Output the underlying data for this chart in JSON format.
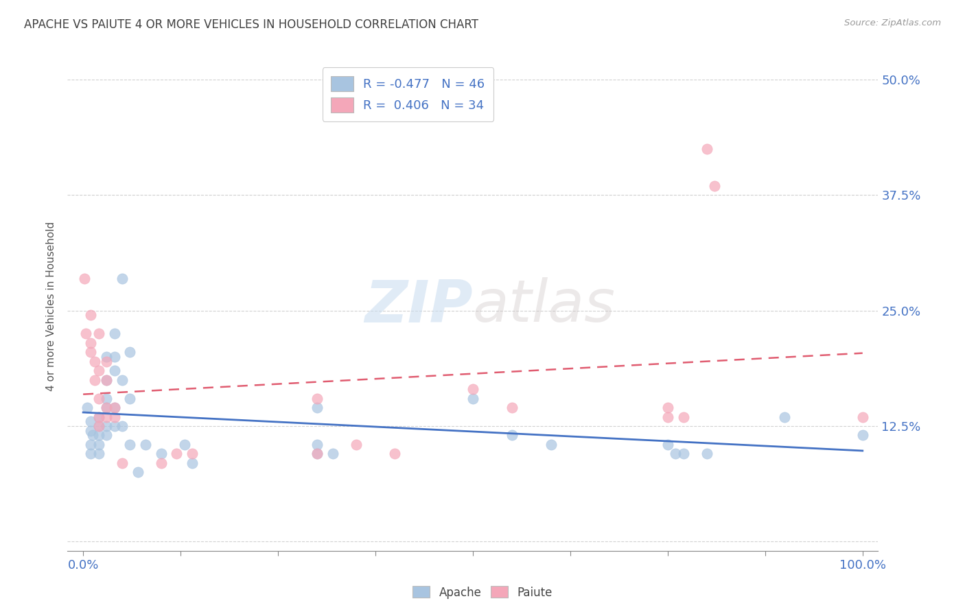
{
  "title": "APACHE VS PAIUTE 4 OR MORE VEHICLES IN HOUSEHOLD CORRELATION CHART",
  "source": "Source: ZipAtlas.com",
  "ylabel": "4 or more Vehicles in Household",
  "xlim": [
    -0.02,
    1.02
  ],
  "ylim": [
    -0.01,
    0.52
  ],
  "xticks": [
    0.0,
    0.125,
    0.25,
    0.375,
    0.5,
    0.625,
    0.75,
    0.875,
    1.0
  ],
  "xticklabels_shown": [
    "0.0%",
    "",
    "",
    "",
    "",
    "",
    "",
    "",
    "100.0%"
  ],
  "yticks": [
    0.0,
    0.125,
    0.25,
    0.375,
    0.5
  ],
  "yticklabels_right": [
    "",
    "12.5%",
    "25.0%",
    "37.5%",
    "50.0%"
  ],
  "legend_R_apache": "-0.477",
  "legend_N_apache": "46",
  "legend_R_paiute": "0.406",
  "legend_N_paiute": "34",
  "apache_color": "#a8c4e0",
  "paiute_color": "#f4a7b9",
  "apache_line_color": "#4472c4",
  "paiute_line_color": "#e05c70",
  "title_color": "#404040",
  "axis_label_color": "#4472c4",
  "watermark_color": "#dce8f5",
  "grid_color": "#cccccc",
  "apache_points": [
    [
      0.005,
      0.145
    ],
    [
      0.01,
      0.13
    ],
    [
      0.01,
      0.12
    ],
    [
      0.012,
      0.115
    ],
    [
      0.01,
      0.105
    ],
    [
      0.01,
      0.095
    ],
    [
      0.02,
      0.135
    ],
    [
      0.02,
      0.125
    ],
    [
      0.02,
      0.115
    ],
    [
      0.02,
      0.105
    ],
    [
      0.02,
      0.095
    ],
    [
      0.03,
      0.2
    ],
    [
      0.03,
      0.175
    ],
    [
      0.03,
      0.155
    ],
    [
      0.03,
      0.145
    ],
    [
      0.03,
      0.125
    ],
    [
      0.03,
      0.115
    ],
    [
      0.04,
      0.225
    ],
    [
      0.04,
      0.2
    ],
    [
      0.04,
      0.185
    ],
    [
      0.04,
      0.145
    ],
    [
      0.04,
      0.125
    ],
    [
      0.05,
      0.285
    ],
    [
      0.05,
      0.175
    ],
    [
      0.05,
      0.125
    ],
    [
      0.06,
      0.205
    ],
    [
      0.06,
      0.155
    ],
    [
      0.06,
      0.105
    ],
    [
      0.07,
      0.075
    ],
    [
      0.08,
      0.105
    ],
    [
      0.1,
      0.095
    ],
    [
      0.13,
      0.105
    ],
    [
      0.14,
      0.085
    ],
    [
      0.3,
      0.145
    ],
    [
      0.3,
      0.105
    ],
    [
      0.3,
      0.095
    ],
    [
      0.32,
      0.095
    ],
    [
      0.5,
      0.155
    ],
    [
      0.55,
      0.115
    ],
    [
      0.6,
      0.105
    ],
    [
      0.75,
      0.105
    ],
    [
      0.76,
      0.095
    ],
    [
      0.77,
      0.095
    ],
    [
      0.8,
      0.095
    ],
    [
      0.9,
      0.135
    ],
    [
      1.0,
      0.115
    ]
  ],
  "paiute_points": [
    [
      0.002,
      0.285
    ],
    [
      0.003,
      0.225
    ],
    [
      0.01,
      0.245
    ],
    [
      0.01,
      0.215
    ],
    [
      0.01,
      0.205
    ],
    [
      0.015,
      0.195
    ],
    [
      0.015,
      0.175
    ],
    [
      0.02,
      0.225
    ],
    [
      0.02,
      0.185
    ],
    [
      0.02,
      0.155
    ],
    [
      0.02,
      0.135
    ],
    [
      0.02,
      0.125
    ],
    [
      0.03,
      0.195
    ],
    [
      0.03,
      0.175
    ],
    [
      0.03,
      0.145
    ],
    [
      0.03,
      0.135
    ],
    [
      0.04,
      0.145
    ],
    [
      0.04,
      0.135
    ],
    [
      0.05,
      0.085
    ],
    [
      0.1,
      0.085
    ],
    [
      0.12,
      0.095
    ],
    [
      0.14,
      0.095
    ],
    [
      0.3,
      0.155
    ],
    [
      0.3,
      0.095
    ],
    [
      0.35,
      0.105
    ],
    [
      0.4,
      0.095
    ],
    [
      0.5,
      0.165
    ],
    [
      0.55,
      0.145
    ],
    [
      0.75,
      0.145
    ],
    [
      0.75,
      0.135
    ],
    [
      0.77,
      0.135
    ],
    [
      0.8,
      0.425
    ],
    [
      0.81,
      0.385
    ],
    [
      1.0,
      0.135
    ]
  ],
  "scatter_size": 120,
  "background_color": "#ffffff",
  "fig_width": 14.06,
  "fig_height": 8.92
}
